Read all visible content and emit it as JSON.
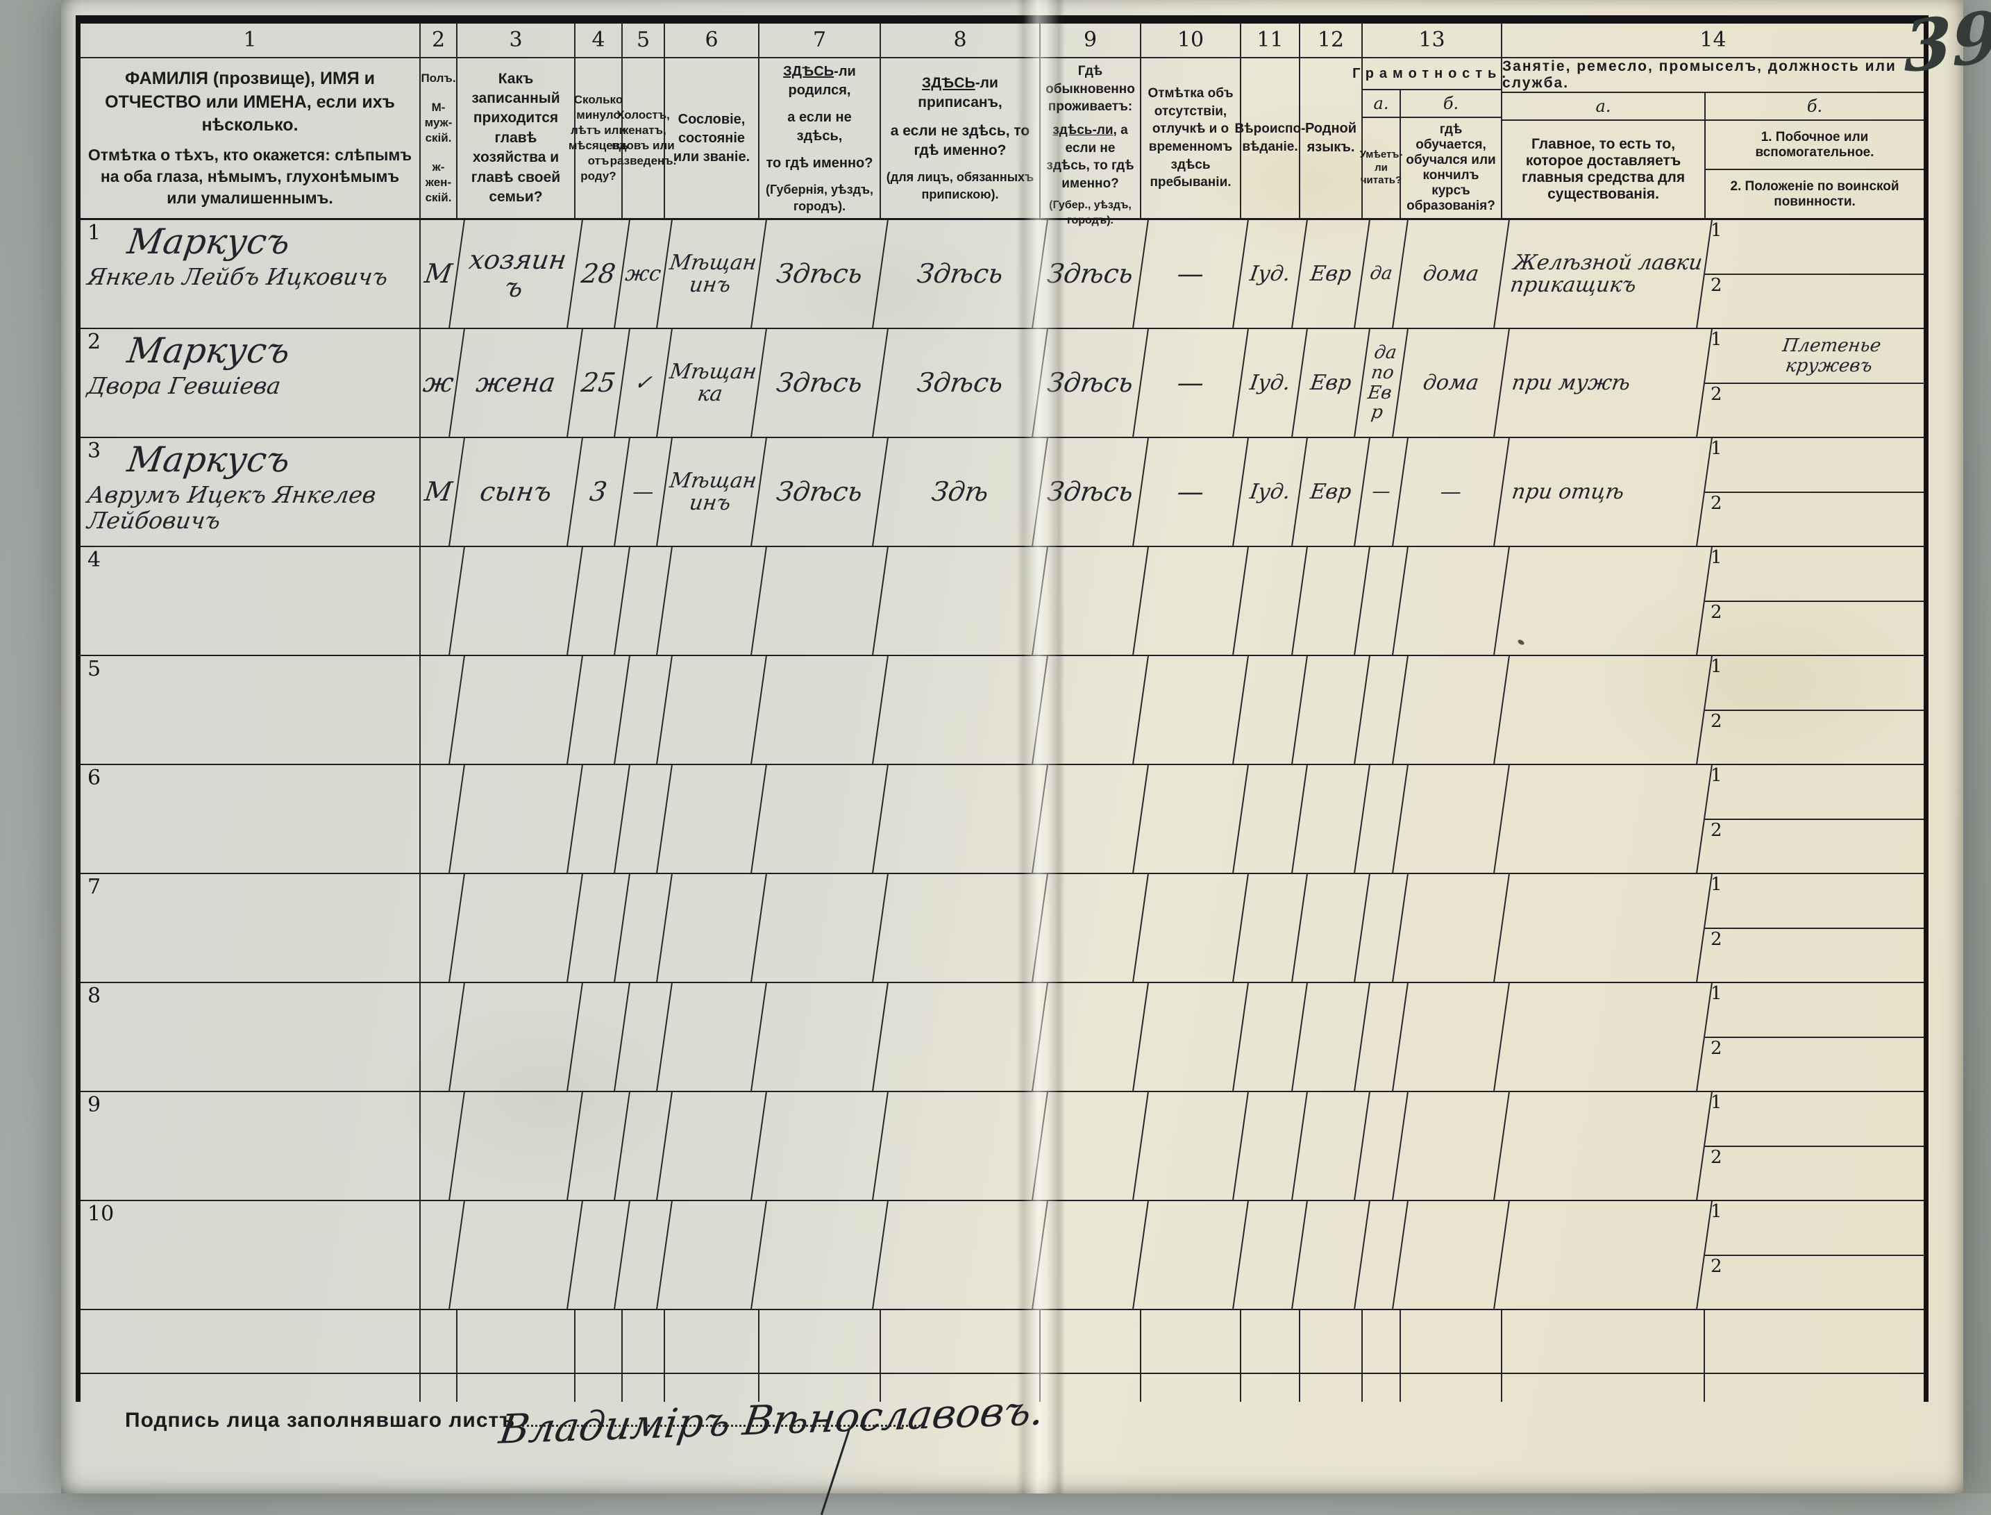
{
  "page": {
    "number": "39",
    "signature_label": "Подпись лица заполнявшаго листъ",
    "signature": "Владиміръ Вѣнославовъ."
  },
  "table": {
    "col_numbers": [
      "1",
      "2",
      "3",
      "4",
      "5",
      "6",
      "7",
      "8",
      "9",
      "10",
      "11",
      "12",
      "13",
      "14"
    ],
    "headers": {
      "c1a": "ФАМИЛІЯ (прозвище), ИМЯ и ОТЧЕСТВО или ИМЕНА, если ихъ нѣсколько.",
      "c1b": "Отмѣтка о тѣхъ, кто окажется: слѣпымъ на оба глаза, нѣмымъ, глухонѣмымъ или умалишеннымъ.",
      "c2a": "Полъ.",
      "c2b": "М-муж-скій.",
      "c2c": "ж-жен-скій.",
      "c3": "Какъ записанный приходится главѣ хозяйства и главѣ своей семьи?",
      "c4": "Сколько минуло лѣтъ или мѣсяцевъ отъ роду?",
      "c5": "Холостъ, женатъ, вдовъ или разведенъ.",
      "c6": "Сословіе, состояніе или званіе.",
      "c7_u": "ЗДѢСЬ",
      "c7_u_rest": "-ли родился,",
      "c7_l2": "а если не здѣсь,",
      "c7_l3": "то гдѣ именно?",
      "c7_l4": "(Губернія, уѣздъ, городъ).",
      "c8_u": "ЗДѢСЬ",
      "c8_u_rest": "-ли приписанъ,",
      "c8_l2": "а если не здѣсь, то гдѣ именно?",
      "c8_l3": "(для лицъ, обязанныхъ припискою).",
      "c9_l1": "Гдѣ обыкновенно проживаетъ:",
      "c9_u": "здѣсь-ли",
      "c9_u_rest": ", а если не здѣсь, то гдѣ именно?",
      "c9_l3": "(Губер., уѣздъ, городъ).",
      "c10": "Отмѣтка объ отсутствіи, отлучкѣ и о временномъ здѣсь пребываніи.",
      "c11": "Вѣроиспо­вѣданіе.",
      "c12": "Родной языкъ.",
      "c13_title": "Грамотность.",
      "c13a_letter": "а.",
      "c13b_letter": "б.",
      "c13a": "Умѣетъ-ли читать?",
      "c13b": "гдѣ обучается, обучался или кончилъ курсъ образованія?",
      "c14_title": "Занятіе, ремесло, промыселъ, должность или служба.",
      "c14a_letter": "а.",
      "c14b_letter": "б.",
      "c14a": "Главное, то есть то, которое доставляетъ главныя средства для существованія.",
      "c14b1": "1. Побочное или вспомогательное.",
      "c14b2": "2. Положеніе по воинской повинности."
    },
    "sub_labels": {
      "first": "1",
      "second": "2"
    },
    "rows": [
      {
        "num": "1",
        "name1": "Маркусъ",
        "name2": "Янкель Лейбъ Ицковичъ",
        "name3": "",
        "sex": "М",
        "relation": "хозяинъ",
        "age": "28",
        "marital": "жс",
        "estate": "Мѣщанинъ",
        "born": "Здѣсь",
        "registered": "Здѣсь",
        "resides": "Здѣсь",
        "absence": "—",
        "religion": "Іуд.",
        "language": "Евр",
        "reads": "да",
        "educated": "дома",
        "occupation": "Желѣзной лавки прикащикъ",
        "side1": "",
        "side2": ""
      },
      {
        "num": "2",
        "name1": "Маркусъ",
        "name2": "Двора Гевшіева",
        "name3": "",
        "sex": "ж",
        "relation": "жена",
        "age": "25",
        "marital": "✓",
        "estate": "Мѣщанка",
        "born": "Здѣсь",
        "registered": "Здѣсь",
        "resides": "Здѣсь",
        "absence": "—",
        "religion": "Іуд.",
        "language": "Евр",
        "reads": "да по Евр",
        "educated": "дома",
        "occupation": "при мужѣ",
        "side1": "Плетенье кружевъ",
        "side2": ""
      },
      {
        "num": "3",
        "name1": "Маркусъ",
        "name2": "Аврумъ Ицекъ Янкелев",
        "name3": "Лейбовичъ",
        "sex": "М",
        "relation": "сынъ",
        "age": "3",
        "marital": "—",
        "estate": "Мѣщанинъ",
        "born": "Здѣсь",
        "registered": "Здѣ",
        "resides": "Здѣсь",
        "absence": "—",
        "religion": "Іуд.",
        "language": "Евр",
        "reads": "—",
        "educated": "—",
        "occupation": "при отцѣ",
        "side1": "",
        "side2": ""
      },
      {
        "num": "4",
        "name1": "",
        "name2": "",
        "name3": "",
        "sex": "",
        "relation": "",
        "age": "",
        "marital": "",
        "estate": "",
        "born": "",
        "registered": "",
        "resides": "",
        "absence": "",
        "religion": "",
        "language": "",
        "reads": "",
        "educated": "",
        "occupation": "",
        "side1": "",
        "side2": ""
      },
      {
        "num": "5",
        "name1": "",
        "name2": "",
        "name3": "",
        "sex": "",
        "relation": "",
        "age": "",
        "marital": "",
        "estate": "",
        "born": "",
        "registered": "",
        "resides": "",
        "absence": "",
        "religion": "",
        "language": "",
        "reads": "",
        "educated": "",
        "occupation": "",
        "side1": "",
        "side2": ""
      },
      {
        "num": "6",
        "name1": "",
        "name2": "",
        "name3": "",
        "sex": "",
        "relation": "",
        "age": "",
        "marital": "",
        "estate": "",
        "born": "",
        "registered": "",
        "resides": "",
        "absence": "",
        "religion": "",
        "language": "",
        "reads": "",
        "educated": "",
        "occupation": "",
        "side1": "",
        "side2": ""
      },
      {
        "num": "7",
        "name1": "",
        "name2": "",
        "name3": "",
        "sex": "",
        "relation": "",
        "age": "",
        "marital": "",
        "estate": "",
        "born": "",
        "registered": "",
        "resides": "",
        "absence": "",
        "religion": "",
        "language": "",
        "reads": "",
        "educated": "",
        "occupation": "",
        "side1": "",
        "side2": ""
      },
      {
        "num": "8",
        "name1": "",
        "name2": "",
        "name3": "",
        "sex": "",
        "relation": "",
        "age": "",
        "marital": "",
        "estate": "",
        "born": "",
        "registered": "",
        "resides": "",
        "absence": "",
        "religion": "",
        "language": "",
        "reads": "",
        "educated": "",
        "occupation": "",
        "side1": "",
        "side2": ""
      },
      {
        "num": "9",
        "name1": "",
        "name2": "",
        "name3": "",
        "sex": "",
        "relation": "",
        "age": "",
        "marital": "",
        "estate": "",
        "born": "",
        "registered": "",
        "resides": "",
        "absence": "",
        "religion": "",
        "language": "",
        "reads": "",
        "educated": "",
        "occupation": "",
        "side1": "",
        "side2": ""
      },
      {
        "num": "10",
        "name1": "",
        "name2": "",
        "name3": "",
        "sex": "",
        "relation": "",
        "age": "",
        "marital": "",
        "estate": "",
        "born": "",
        "registered": "",
        "resides": "",
        "absence": "",
        "religion": "",
        "language": "",
        "reads": "",
        "educated": "",
        "occupation": "",
        "side1": "",
        "side2": ""
      }
    ]
  }
}
